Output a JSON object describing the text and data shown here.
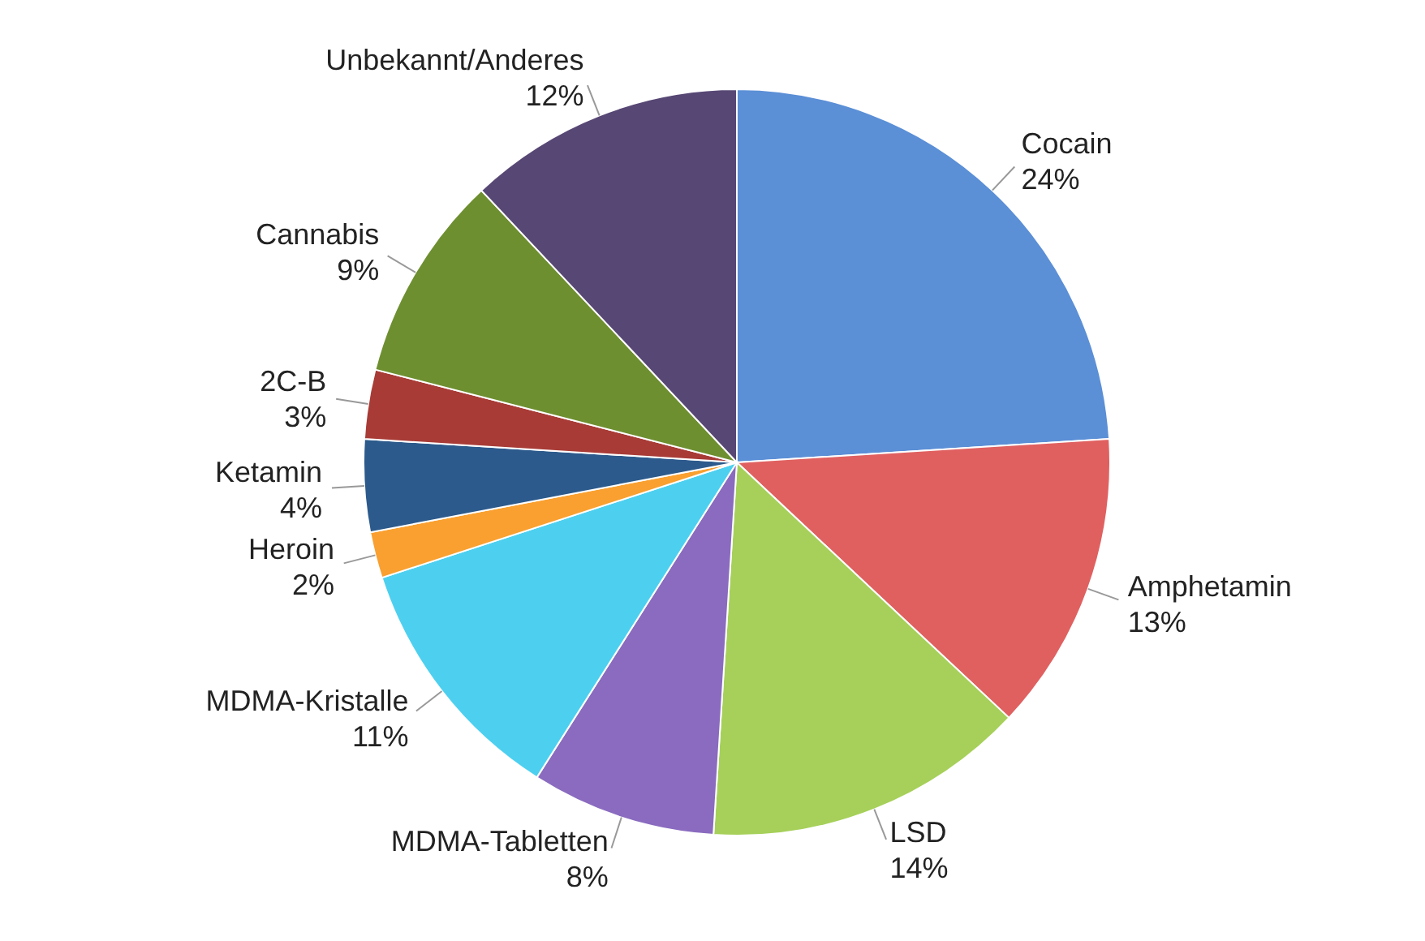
{
  "chart_data": {
    "type": "pie",
    "categories": [
      "Cocain",
      "Amphetamin",
      "LSD",
      "MDMA-Tabletten",
      "MDMA-Kristalle",
      "Heroin",
      "Ketamin",
      "2C-B",
      "Cannabis",
      "Unbekannt/Anderes"
    ],
    "values": [
      24,
      13,
      14,
      8,
      11,
      2,
      4,
      3,
      9,
      12
    ],
    "colors": [
      "#5b8fd6",
      "#e06060",
      "#a6d05a",
      "#8a6bbf",
      "#4dd0f0",
      "#f9a030",
      "#2c5a8c",
      "#a83b36",
      "#6e8f30",
      "#574774"
    ],
    "value_labels": [
      "24%",
      "13%",
      "14%",
      "8%",
      "11%",
      "2%",
      "4%",
      "3%",
      "9%",
      "12%"
    ],
    "legend": false
  }
}
